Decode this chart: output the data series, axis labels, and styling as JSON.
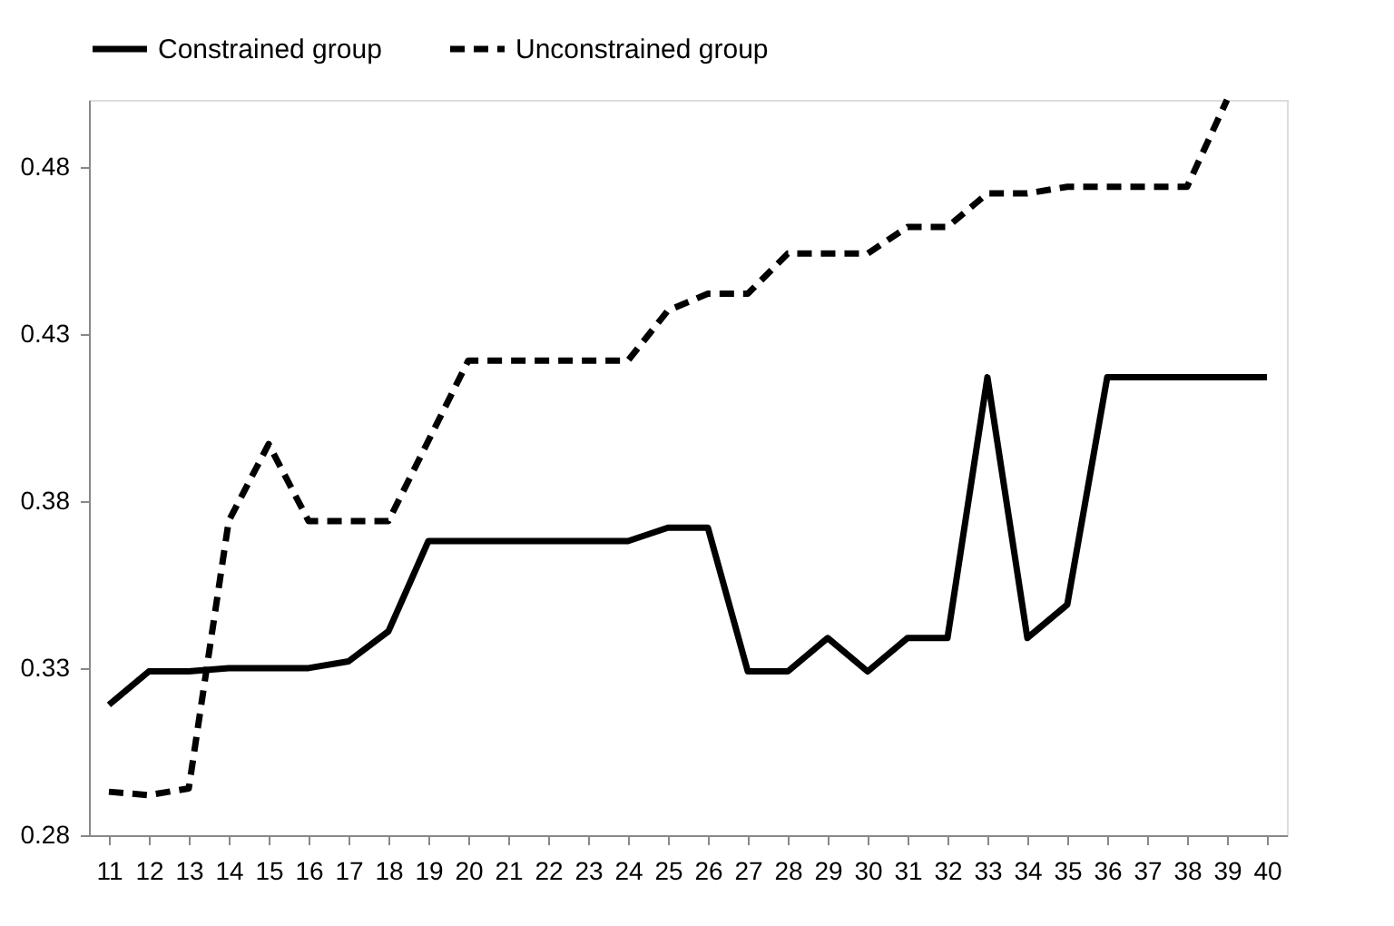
{
  "chart_data": {
    "type": "line",
    "categories": [
      "11",
      "12",
      "13",
      "14",
      "15",
      "16",
      "17",
      "18",
      "19",
      "20",
      "21",
      "22",
      "23",
      "24",
      "25",
      "26",
      "27",
      "28",
      "29",
      "30",
      "31",
      "32",
      "33",
      "34",
      "35",
      "36",
      "37",
      "38",
      "39",
      "40"
    ],
    "series": [
      {
        "name": "Constrained group",
        "color": "#000000",
        "line_style": "solid",
        "values": [
          0.319,
          0.329,
          0.329,
          0.33,
          0.33,
          0.33,
          0.332,
          0.341,
          0.368,
          0.368,
          0.368,
          0.368,
          0.368,
          0.368,
          0.372,
          0.372,
          0.329,
          0.329,
          0.339,
          0.329,
          0.339,
          0.339,
          0.417,
          0.339,
          0.349,
          0.417,
          0.417,
          0.417,
          0.417,
          0.417
        ]
      },
      {
        "name": "Unconstrained group",
        "color": "#000000",
        "line_style": "dashed",
        "values": [
          0.293,
          0.292,
          0.294,
          0.374,
          0.397,
          0.374,
          0.374,
          0.374,
          0.398,
          0.422,
          0.422,
          0.422,
          0.422,
          0.422,
          0.437,
          0.442,
          0.442,
          0.454,
          0.454,
          0.454,
          0.462,
          0.462,
          0.472,
          0.472,
          0.474,
          0.474,
          0.474,
          0.474,
          0.5,
          null
        ]
      }
    ],
    "ylim": [
      0.28,
      0.5
    ],
    "yticks": [
      0.28,
      0.33,
      0.38,
      0.43,
      0.48
    ],
    "grid": false,
    "legend": "top"
  }
}
